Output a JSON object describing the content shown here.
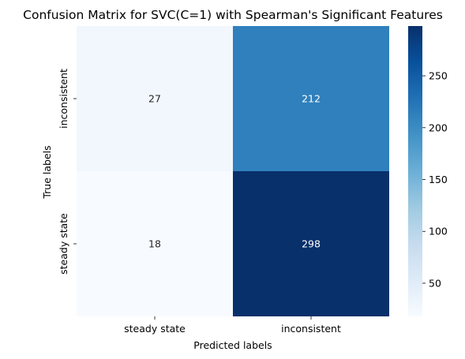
{
  "chart_data": {
    "type": "heatmap",
    "title": "Confusion Matrix for SVC(C=1) with Spearman's Significant Features",
    "xlabel": "Predicted labels",
    "ylabel": "True labels",
    "x_categories": [
      "steady state",
      "inconsistent"
    ],
    "y_categories": [
      "inconsistent",
      "steady state"
    ],
    "values": [
      [
        27,
        212
      ],
      [
        18,
        298
      ]
    ],
    "colormap": "Blues",
    "colorbar": {
      "range": [
        18,
        298
      ],
      "ticks": [
        50,
        100,
        150,
        200,
        250
      ]
    }
  }
}
